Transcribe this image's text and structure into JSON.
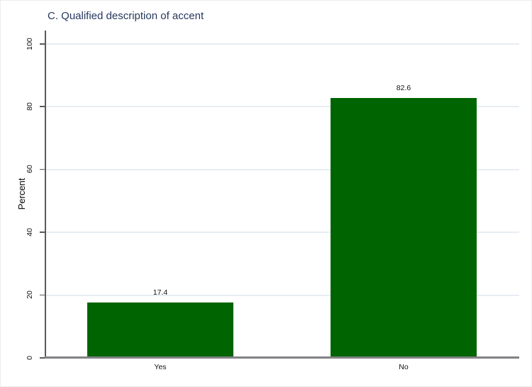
{
  "chart_data": {
    "type": "bar",
    "title": "C. Qualified description of accent",
    "ylabel": "Percent",
    "xlabel": "",
    "categories": [
      "Yes",
      "No"
    ],
    "values": [
      17.4,
      82.6
    ],
    "value_labels": [
      "17.4",
      "82.6"
    ],
    "ylim": [
      0,
      100
    ],
    "yticks": [
      0,
      20,
      40,
      60,
      80,
      100
    ],
    "ytick_labels": [
      "0",
      "20",
      "40",
      "60",
      "80",
      "100"
    ],
    "grid": true,
    "legend": "none",
    "colors": {
      "bar": "#006400",
      "grid": "#e7edf4",
      "title_text": "#26385e",
      "axis": "#828285",
      "tick_text": "#111111"
    }
  }
}
